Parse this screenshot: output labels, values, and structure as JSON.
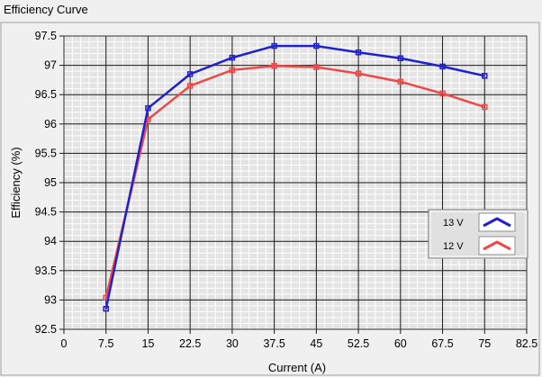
{
  "window": {
    "title": "Efficiency Curve"
  },
  "chart_data": {
    "type": "line",
    "xlabel": "Current (A)",
    "ylabel": "Efficiency (%)",
    "xlim": [
      0,
      82.5
    ],
    "ylim": [
      92.5,
      97.5
    ],
    "x_ticks": [
      "0",
      "7.5",
      "15",
      "22.5",
      "30",
      "37.5",
      "45",
      "52.5",
      "60",
      "67.5",
      "75",
      "82.5"
    ],
    "y_ticks": [
      "92.5",
      "93",
      "93.5",
      "94",
      "94.5",
      "95",
      "95.5",
      "96",
      "96.5",
      "97",
      "97.5"
    ],
    "grid": true,
    "legend_position": "right",
    "x": [
      7.5,
      15,
      22.5,
      30,
      37.5,
      45,
      52.5,
      60,
      67.5,
      75
    ],
    "series": [
      {
        "name": "13 V",
        "color": "#2020d0",
        "values": [
          92.85,
          96.27,
          96.85,
          97.13,
          97.33,
          97.33,
          97.22,
          97.12,
          96.98,
          96.82
        ]
      },
      {
        "name": "12 V",
        "color": "#f04848",
        "values": [
          93.04,
          96.08,
          96.65,
          96.92,
          96.99,
          96.97,
          96.86,
          96.72,
          96.52,
          96.29
        ]
      }
    ]
  }
}
